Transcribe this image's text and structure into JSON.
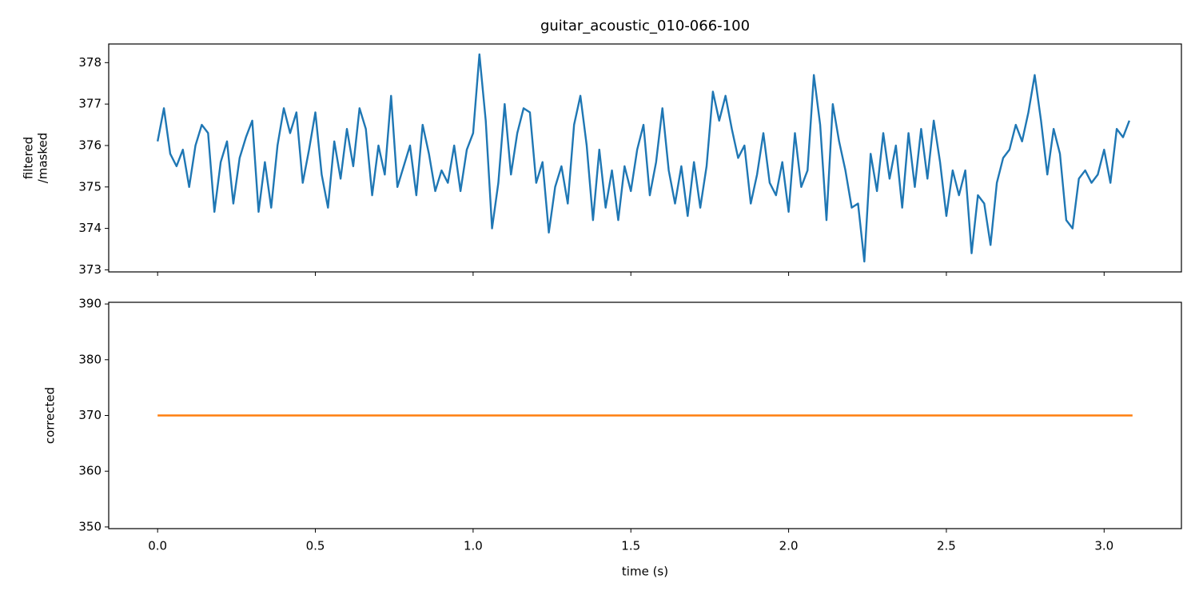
{
  "chart_data": [
    {
      "type": "line",
      "title": "guitar_acoustic_010-066-100",
      "ylabel": [
        "filtered",
        "/masked"
      ],
      "xlim": [
        -0.155,
        3.245
      ],
      "ylim": [
        372.95,
        378.45
      ],
      "xticks": [
        0,
        0.5,
        1,
        1.5,
        2,
        2.5,
        3
      ],
      "yticks": [
        373,
        374,
        375,
        376,
        377,
        378
      ],
      "x": [
        0,
        0.02,
        0.04,
        0.06,
        0.08,
        0.1,
        0.12,
        0.14,
        0.16,
        0.18,
        0.2,
        0.22,
        0.24,
        0.26,
        0.28,
        0.3,
        0.32,
        0.34,
        0.36,
        0.38,
        0.4,
        0.42,
        0.44,
        0.46,
        0.48,
        0.5,
        0.52,
        0.54,
        0.56,
        0.58,
        0.6,
        0.62,
        0.64,
        0.66,
        0.68,
        0.7,
        0.72,
        0.74,
        0.76,
        0.78,
        0.8,
        0.82,
        0.84,
        0.86,
        0.88,
        0.9,
        0.92,
        0.94,
        0.96,
        0.98,
        1,
        1.02,
        1.04,
        1.06,
        1.08,
        1.1,
        1.12,
        1.14,
        1.16,
        1.18,
        1.2,
        1.22,
        1.24,
        1.26,
        1.28,
        1.3,
        1.32,
        1.34,
        1.36,
        1.38,
        1.4,
        1.42,
        1.44,
        1.46,
        1.48,
        1.5,
        1.52,
        1.54,
        1.56,
        1.58,
        1.6,
        1.62,
        1.64,
        1.66,
        1.68,
        1.7,
        1.72,
        1.74,
        1.76,
        1.78,
        1.8,
        1.82,
        1.84,
        1.86,
        1.88,
        1.9,
        1.92,
        1.94,
        1.96,
        1.98,
        2,
        2.02,
        2.04,
        2.06,
        2.08,
        2.1,
        2.12,
        2.14,
        2.16,
        2.18,
        2.2,
        2.22,
        2.24,
        2.26,
        2.28,
        2.3,
        2.32,
        2.34,
        2.36,
        2.38,
        2.4,
        2.42,
        2.44,
        2.46,
        2.48,
        2.5,
        2.52,
        2.54,
        2.56,
        2.58,
        2.6,
        2.62,
        2.64,
        2.66,
        2.68,
        2.7,
        2.72,
        2.74,
        2.76,
        2.78,
        2.8,
        2.82,
        2.84,
        2.86,
        2.88,
        2.9,
        2.92,
        2.94,
        2.96,
        2.98,
        3,
        3.02,
        3.04,
        3.06,
        3.08
      ],
      "series": [
        {
          "color": "#1f77b4",
          "values": [
            376.1,
            376.9,
            375.8,
            375.5,
            375.9,
            375.0,
            376.0,
            376.5,
            376.3,
            374.4,
            375.6,
            376.1,
            374.6,
            375.7,
            376.2,
            376.6,
            374.4,
            375.6,
            374.5,
            376.0,
            376.9,
            376.3,
            376.8,
            375.1,
            375.9,
            376.8,
            375.3,
            374.5,
            376.1,
            375.2,
            376.4,
            375.5,
            376.9,
            376.4,
            374.8,
            376.0,
            375.3,
            377.2,
            375.0,
            375.5,
            376.0,
            374.8,
            376.5,
            375.8,
            374.9,
            375.4,
            375.1,
            376.0,
            374.9,
            375.9,
            376.3,
            378.2,
            376.6,
            374.0,
            375.1,
            377.0,
            375.3,
            376.3,
            376.9,
            376.8,
            375.1,
            375.6,
            373.9,
            375.0,
            375.5,
            374.6,
            376.5,
            377.2,
            376.0,
            374.2,
            375.9,
            374.5,
            375.4,
            374.2,
            375.5,
            374.9,
            375.9,
            376.5,
            374.8,
            375.6,
            376.9,
            375.4,
            374.6,
            375.5,
            374.3,
            375.6,
            374.5,
            375.5,
            377.3,
            376.6,
            377.2,
            376.4,
            375.7,
            376.0,
            374.6,
            375.3,
            376.3,
            375.1,
            374.8,
            375.6,
            374.4,
            376.3,
            375.0,
            375.4,
            377.7,
            376.5,
            374.2,
            377.0,
            376.1,
            375.4,
            374.5,
            374.6,
            373.2,
            375.8,
            374.9,
            376.3,
            375.2,
            376.0,
            374.5,
            376.3,
            375.0,
            376.4,
            375.2,
            376.6,
            375.6,
            374.3,
            375.4,
            374.8,
            375.4,
            373.4,
            374.8,
            374.6,
            373.6,
            375.1,
            375.7,
            375.9,
            376.5,
            376.1,
            376.8,
            377.7,
            376.6,
            375.3,
            376.4,
            375.8,
            374.2,
            374.0,
            375.2,
            375.4,
            375.1,
            375.3,
            375.9,
            375.1,
            376.4,
            376.2,
            376.6
          ]
        }
      ]
    },
    {
      "type": "line",
      "ylabel": [
        "corrected"
      ],
      "xlabel": "time (s)",
      "xlim": [
        -0.155,
        3.245
      ],
      "ylim": [
        349.7,
        390.3
      ],
      "xticks": [
        {
          "value": 0,
          "label": "0.0"
        },
        0.5,
        {
          "value": 1,
          "label": "1.0"
        },
        1.5,
        {
          "value": 2,
          "label": "2.0"
        },
        2.5,
        {
          "value": 3,
          "label": "3.0"
        }
      ],
      "yticks": [
        350,
        360,
        370,
        380,
        390
      ],
      "x": [
        0,
        3.09
      ],
      "series": [
        {
          "color": "#ff7f0e",
          "values": [
            370,
            370
          ]
        }
      ]
    }
  ]
}
